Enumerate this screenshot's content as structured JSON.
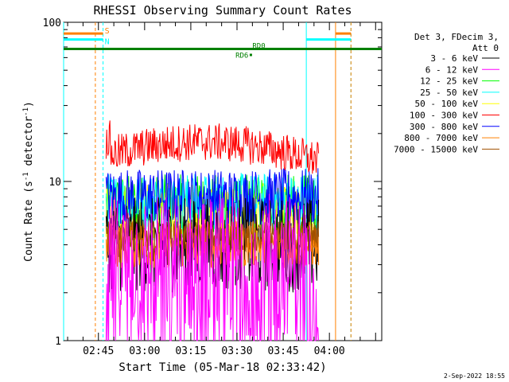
{
  "chart_data": {
    "type": "line",
    "title": "RHESSI Observing Summary Count Rates",
    "xlabel": "Start Time (05-Mar-18 02:33:42)",
    "ylabel": "Count Rate (s",
    "ylabel_sup": "-1",
    "ylabel_tail": " detector",
    "ylabel_tail_sup": "-1",
    "ylabel_close": ")",
    "yscale": "log",
    "ylim": [
      1,
      100
    ],
    "xlim": [
      "02:33:42",
      "04:17:00"
    ],
    "x_ticks": [
      "02:45",
      "03:00",
      "03:15",
      "03:30",
      "03:45",
      "04:00"
    ],
    "y_ticks": [
      "1",
      "10",
      "100"
    ],
    "legend_header": [
      "Det 3, FDecim 3,",
      "Att 0"
    ],
    "legend_position": "right",
    "series": [
      {
        "name": "3 - 6 keV",
        "color": "#000000",
        "level": 4.0,
        "spread": 0.3
      },
      {
        "name": "6 - 12 keV",
        "color": "#ff00ff",
        "level": 3.0,
        "spread": 0.45
      },
      {
        "name": "12 - 25 keV",
        "color": "#00ff00",
        "level": 7.0,
        "spread": 0.2
      },
      {
        "name": "25 - 50 keV",
        "color": "#00ffff",
        "level": 7.5,
        "spread": 0.18
      },
      {
        "name": "50 - 100 keV",
        "color": "#ffff00",
        "level": 6.5,
        "spread": 0.18
      },
      {
        "name": "100 - 300 keV",
        "color": "#ff0000",
        "level": 14.5,
        "spread": 0.12
      },
      {
        "name": "300 - 800 keV",
        "color": "#0000ff",
        "level": 8.0,
        "spread": 0.18
      },
      {
        "name": "800 - 7000 keV",
        "color": "#ff8000",
        "level": 4.0,
        "spread": 0.15
      },
      {
        "name": "7000 - 15000 keV",
        "color": "#a05000",
        "level": 4.5,
        "spread": 0.1
      }
    ],
    "data_start": "02:47:30",
    "data_end": "03:56:30",
    "vertical_markers": [
      {
        "time": "02:33:42",
        "style": "solid",
        "color": "#00ffff"
      },
      {
        "time": "02:44:00",
        "style": "dashed",
        "color": "#ff8000"
      },
      {
        "time": "02:46:30",
        "style": "dashed",
        "color": "#00ffff"
      },
      {
        "time": "03:52:30",
        "style": "solid",
        "color": "#00ffff"
      },
      {
        "time": "04:02:00",
        "style": "solid",
        "color": "#ff8000"
      },
      {
        "time": "04:07:00",
        "style": "dashed",
        "color": "#00ffff"
      },
      {
        "time": "04:07:00",
        "style": "dashed",
        "color": "#ff8000"
      }
    ],
    "flag_bars": [
      {
        "label": "S",
        "color": "#ff8000",
        "start": "02:33:42",
        "end": "02:46:30",
        "level": 85
      },
      {
        "label": "N",
        "color": "#00ffff",
        "start": "02:33:42",
        "end": "02:46:30",
        "level": 78
      },
      {
        "label": "",
        "color": "#ff8000",
        "start": "04:02:00",
        "end": "04:07:00",
        "level": 85
      },
      {
        "label": "",
        "color": "#00ffff",
        "start": "03:52:30",
        "end": "04:07:00",
        "level": 78
      }
    ],
    "saa_line": {
      "color": "#008000",
      "level": 68,
      "label_a": "RD0",
      "label_b": "RD6"
    },
    "timestamp": "2-Sep-2022 18:55"
  }
}
